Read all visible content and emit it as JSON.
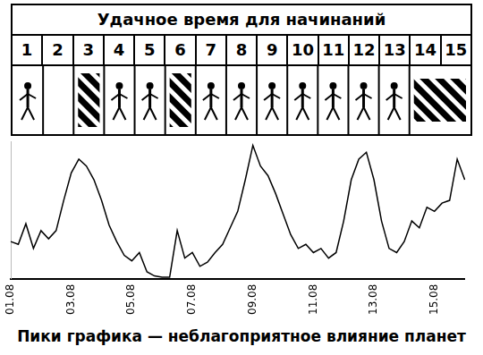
{
  "header": {
    "title": "Удачное время для начинаний",
    "days": [
      1,
      2,
      3,
      4,
      5,
      6,
      7,
      8,
      9,
      10,
      11,
      12,
      13,
      14,
      15
    ]
  },
  "chart_data": {
    "type": "line",
    "categories": [
      "01.08",
      null,
      null,
      null,
      null,
      null,
      null,
      null,
      "03.08",
      null,
      null,
      null,
      null,
      null,
      null,
      null,
      "05.08",
      null,
      null,
      null,
      null,
      null,
      null,
      null,
      "07.08",
      null,
      null,
      null,
      null,
      null,
      null,
      null,
      "09.08",
      null,
      null,
      null,
      null,
      null,
      null,
      null,
      "11.08",
      null,
      null,
      null,
      null,
      null,
      null,
      null,
      "13.08",
      null,
      null,
      null,
      null,
      null,
      null,
      null,
      "15.08",
      null,
      null,
      null,
      null
    ],
    "values": [
      27,
      25,
      40,
      22,
      35,
      29,
      35,
      57,
      77,
      87,
      82,
      72,
      57,
      39,
      27,
      17,
      13,
      19,
      5,
      2,
      1,
      1,
      35,
      15,
      19,
      9,
      12,
      19,
      25,
      37,
      49,
      72,
      97,
      82,
      75,
      62,
      47,
      32,
      22,
      25,
      19,
      22,
      15,
      19,
      42,
      72,
      87,
      92,
      72,
      42,
      22,
      19,
      27,
      42,
      37,
      52,
      49,
      55,
      57,
      87,
      72
    ],
    "color": "#000000",
    "ylim": [
      0,
      100
    ],
    "yticks": [],
    "grid": false,
    "tick_labels": "x",
    "annotation": "Пики графика — неблагоприятное влияние планет"
  }
}
